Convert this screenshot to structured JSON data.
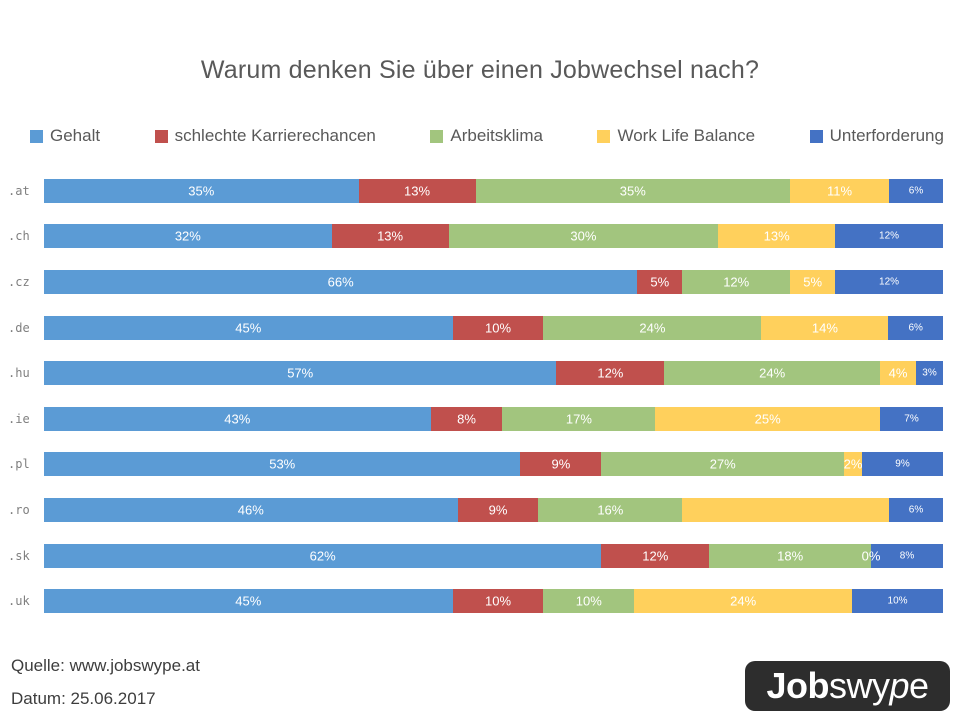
{
  "title": "Warum denken Sie über einen Jobwechsel nach?",
  "legend": [
    {
      "label": "Gehalt",
      "color": "#5B9BD5"
    },
    {
      "label": "schlechte Karrierechancen",
      "color": "#C0504D"
    },
    {
      "label": "Arbeitsklima",
      "color": "#A2C57E"
    },
    {
      "label": "Work Life Balance",
      "color": "#FFD05C"
    },
    {
      "label": "Unterforderung",
      "color": "#4472C4"
    }
  ],
  "chart_data": {
    "type": "bar",
    "stacked": true,
    "orientation": "horizontal",
    "title": "Warum denken Sie über einen Jobwechsel nach?",
    "axis_max_percent": 100,
    "grid": false,
    "legend_position": "top",
    "categories": [
      ".at",
      ".ch",
      ".cz",
      ".de",
      ".hu",
      ".ie",
      ".pl",
      ".ro",
      ".sk",
      ".uk"
    ],
    "series": [
      {
        "name": "Gehalt",
        "color": "#5B9BD5",
        "values": [
          35,
          32,
          66,
          45,
          57,
          43,
          53,
          46,
          62,
          45
        ],
        "labels": [
          "35%",
          "32%",
          "66%",
          "45%",
          "57%",
          "43%",
          "53%",
          "46%",
          "62%",
          "45%"
        ]
      },
      {
        "name": "schlechte Karrierechancen",
        "color": "#C0504D",
        "values": [
          13,
          13,
          5,
          10,
          12,
          8,
          9,
          9,
          12,
          10
        ],
        "labels": [
          "13%",
          "13%",
          "5%",
          "10%",
          "12%",
          "8%",
          "9%",
          "9%",
          "12%",
          "10%"
        ]
      },
      {
        "name": "Arbeitsklima",
        "color": "#A2C57E",
        "values": [
          35,
          30,
          12,
          24,
          24,
          17,
          27,
          16,
          18,
          10
        ],
        "labels": [
          "35%",
          "30%",
          "12%",
          "24%",
          "24%",
          "17%",
          "27%",
          "16%",
          "18%",
          "10%"
        ]
      },
      {
        "name": "Work Life Balance",
        "color": "#FFD05C",
        "values": [
          11,
          13,
          5,
          14,
          4,
          25,
          2,
          23,
          0,
          24
        ],
        "labels": [
          "11%",
          "13%",
          "5%",
          "14%",
          "4%",
          "25%",
          "2%",
          "",
          "0%",
          "24%"
        ]
      },
      {
        "name": "Unterforderung",
        "color": "#4472C4",
        "values": [
          6,
          12,
          12,
          6,
          3,
          7,
          9,
          6,
          8,
          10
        ],
        "labels": [
          "6%",
          "12%",
          "12%",
          "6%",
          "3%",
          "7%",
          "9%",
          "6%",
          "8%",
          "10%"
        ]
      }
    ]
  },
  "footer": {
    "source": "Quelle: www.jobswype.at",
    "date": "Datum: 25.06.2017"
  },
  "logo": {
    "bold": "Job",
    "part1": "swy",
    "slanted": "p",
    "part2": "e"
  }
}
